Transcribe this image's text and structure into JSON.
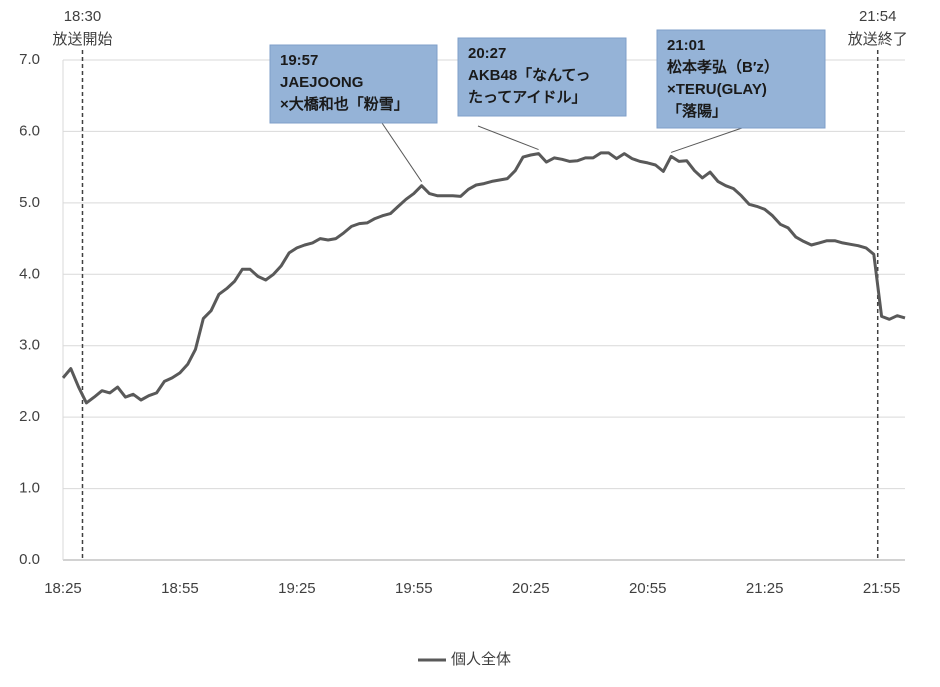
{
  "chart_data": {
    "type": "line",
    "x": [
      "18:25",
      "18:27",
      "18:29",
      "18:31",
      "18:33",
      "18:35",
      "18:37",
      "18:39",
      "18:41",
      "18:43",
      "18:45",
      "18:47",
      "18:49",
      "18:51",
      "18:53",
      "18:55",
      "18:57",
      "18:59",
      "19:01",
      "19:03",
      "19:05",
      "19:07",
      "19:09",
      "19:11",
      "19:13",
      "19:15",
      "19:17",
      "19:19",
      "19:21",
      "19:23",
      "19:25",
      "19:27",
      "19:29",
      "19:31",
      "19:33",
      "19:35",
      "19:37",
      "19:39",
      "19:41",
      "19:43",
      "19:45",
      "19:47",
      "19:49",
      "19:51",
      "19:53",
      "19:55",
      "19:57",
      "19:59",
      "20:01",
      "20:03",
      "20:05",
      "20:07",
      "20:09",
      "20:11",
      "20:13",
      "20:15",
      "20:17",
      "20:19",
      "20:21",
      "20:23",
      "20:25",
      "20:27",
      "20:29",
      "20:31",
      "20:33",
      "20:35",
      "20:37",
      "20:39",
      "20:41",
      "20:43",
      "20:45",
      "20:47",
      "20:49",
      "20:51",
      "20:53",
      "20:55",
      "20:57",
      "20:59",
      "21:01",
      "21:03",
      "21:05",
      "21:07",
      "21:09",
      "21:11",
      "21:13",
      "21:15",
      "21:17",
      "21:19",
      "21:21",
      "21:23",
      "21:25",
      "21:27",
      "21:29",
      "21:31",
      "21:33",
      "21:35",
      "21:37",
      "21:39",
      "21:41",
      "21:43",
      "21:45",
      "21:47",
      "21:49",
      "21:51",
      "21:53",
      "21:55",
      "21:57",
      "21:59",
      "22:01"
    ],
    "series": [
      {
        "name": "個人全体",
        "color": "#595959",
        "values": [
          2.55,
          2.68,
          2.42,
          2.2,
          2.28,
          2.37,
          2.34,
          2.42,
          2.28,
          2.32,
          2.24,
          2.3,
          2.34,
          2.5,
          2.55,
          2.62,
          2.74,
          2.95,
          3.38,
          3.49,
          3.72,
          3.8,
          3.9,
          4.07,
          4.07,
          3.97,
          3.92,
          4.0,
          4.12,
          4.3,
          4.37,
          4.41,
          4.44,
          4.5,
          4.48,
          4.5,
          4.58,
          4.67,
          4.71,
          4.72,
          4.78,
          4.82,
          4.85,
          4.95,
          5.05,
          5.13,
          5.24,
          5.13,
          5.1,
          5.1,
          5.1,
          5.09,
          5.19,
          5.25,
          5.27,
          5.3,
          5.32,
          5.34,
          5.45,
          5.64,
          5.67,
          5.69,
          5.57,
          5.63,
          5.61,
          5.58,
          5.59,
          5.63,
          5.63,
          5.7,
          5.7,
          5.62,
          5.69,
          5.62,
          5.58,
          5.56,
          5.53,
          5.44,
          5.65,
          5.58,
          5.59,
          5.45,
          5.35,
          5.43,
          5.3,
          5.24,
          5.2,
          5.1,
          4.98,
          4.95,
          4.91,
          4.82,
          4.7,
          4.65,
          4.52,
          4.46,
          4.41,
          4.44,
          4.47,
          4.47,
          4.44,
          4.42,
          4.4,
          4.37,
          4.28,
          3.41,
          3.37,
          3.42,
          3.39
        ]
      }
    ],
    "xlim": [
      "18:25",
      "22:01"
    ],
    "xticks": [
      "18:25",
      "18:55",
      "19:25",
      "19:55",
      "20:25",
      "20:55",
      "21:25",
      "21:55"
    ],
    "ylim": [
      0,
      7
    ],
    "yticks": [
      {
        "value": 0,
        "label": "0.0"
      },
      {
        "value": 1,
        "label": "1.0"
      },
      {
        "value": 2,
        "label": "2.0"
      },
      {
        "value": 3,
        "label": "3.0"
      },
      {
        "value": 4,
        "label": "4.0"
      },
      {
        "value": 5,
        "label": "5.0"
      },
      {
        "value": 6,
        "label": "6.0"
      },
      {
        "value": 7,
        "label": "7.0"
      }
    ],
    "grid": true,
    "markers": [
      {
        "time": "18:30",
        "label": "放送開始"
      },
      {
        "time": "21:54",
        "label": "放送終了"
      }
    ],
    "annotations": [
      {
        "lines": [
          "19:57",
          "JAEJOONG",
          "×大橋和也「粉雪」"
        ]
      },
      {
        "lines": [
          "20:27",
          "AKB48「なんてっ",
          "たってアイドル」"
        ]
      },
      {
        "lines": [
          "21:01",
          "松本孝弘（B′z）",
          "×TERU(GLAY)",
          "「落陽」"
        ]
      }
    ],
    "legend": "bottom"
  }
}
